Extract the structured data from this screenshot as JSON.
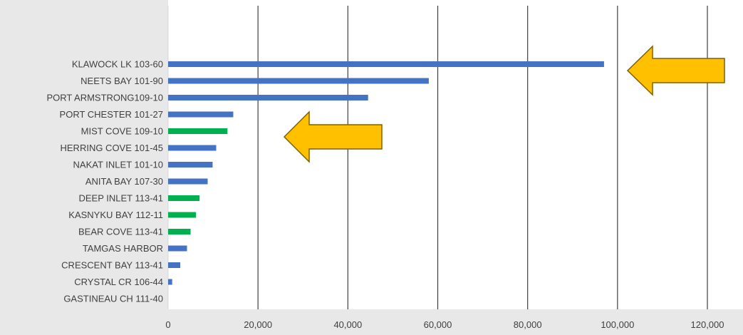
{
  "chart_data": {
    "type": "bar",
    "orientation": "horizontal",
    "categories": [
      "KLAWOCK LK 103-60",
      "NEETS BAY 101-90",
      "PORT ARMSTRONG109-10",
      "PORT CHESTER 101-27",
      "MIST COVE 109-10",
      "HERRING COVE 101-45",
      "NAKAT INLET 101-10",
      "ANITA BAY 107-30",
      "DEEP INLET 113-41",
      "KASNYKU BAY 112-11",
      "BEAR COVE 113-41",
      "TAMGAS HARBOR",
      "CRESCENT BAY 113-41",
      "CRYSTAL CR 106-44",
      "GASTINEAU CH 111-40"
    ],
    "values": [
      97000,
      58000,
      44500,
      14500,
      13200,
      10700,
      9900,
      8800,
      7000,
      6200,
      5000,
      4200,
      2700,
      900,
      0
    ],
    "bar_colors": [
      "#4472c4",
      "#4472c4",
      "#4472c4",
      "#4472c4",
      "#00b050",
      "#4472c4",
      "#4472c4",
      "#4472c4",
      "#00b050",
      "#00b050",
      "#00b050",
      "#4472c4",
      "#4472c4",
      "#4472c4",
      "#4472c4"
    ],
    "xlim": [
      0,
      120000
    ],
    "x_ticks": [
      0,
      20000,
      40000,
      60000,
      80000,
      100000,
      120000
    ],
    "x_tick_labels": [
      "0",
      "20,000",
      "40,000",
      "60,000",
      "80,000",
      "100,000",
      "120,000"
    ],
    "grid": "vertical",
    "title": "",
    "xlabel": "",
    "ylabel": "",
    "annotations": [
      {
        "type": "arrow",
        "direction": "left",
        "pointing_to": "KLAWOCK LK 103-60",
        "fill": "#ffc000",
        "stroke": "#7f6000"
      },
      {
        "type": "arrow",
        "direction": "left",
        "pointing_to": "MIST COVE 109-10",
        "fill": "#ffc000",
        "stroke": "#7f6000"
      }
    ]
  },
  "colors": {
    "background": "#e8e8e8",
    "plot_background": "#ffffff",
    "gridline": "#404040",
    "text": "#404040"
  }
}
